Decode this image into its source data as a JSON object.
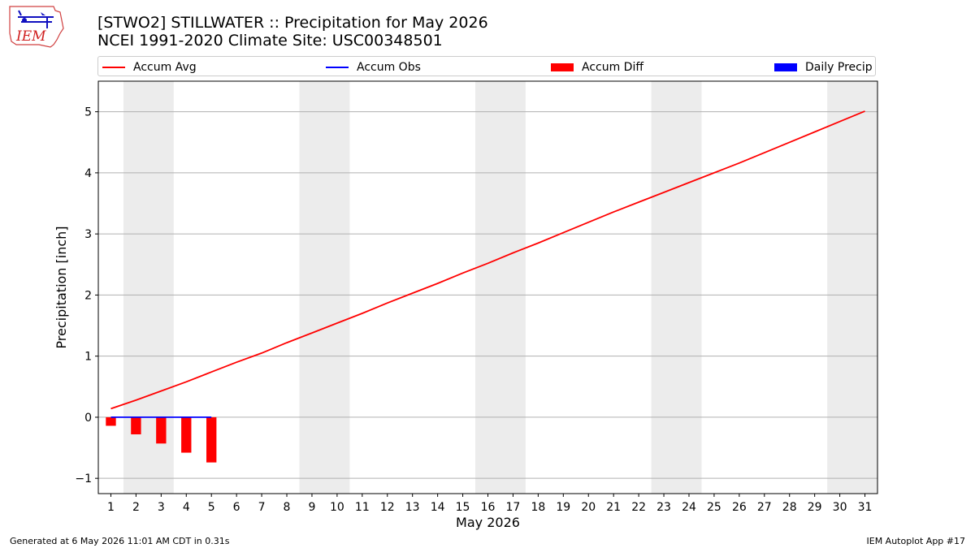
{
  "logo": {
    "text": "IEM",
    "icon": "iem-logo-icon"
  },
  "titles": {
    "line1": "[STWO2] STILLWATER :: Precipitation for May 2026",
    "line2": "NCEI 1991-2020 Climate Site: USC00348501"
  },
  "legend": [
    {
      "label": "Accum Avg",
      "kind": "line",
      "color": "#ff0000"
    },
    {
      "label": "Accum Obs",
      "kind": "line",
      "color": "#0000ff"
    },
    {
      "label": "Accum Diff",
      "kind": "bar",
      "color": "#ff0000"
    },
    {
      "label": "Daily Precip",
      "kind": "bar",
      "color": "#0000ff"
    }
  ],
  "footer": {
    "left": "Generated at 6 May 2026 11:01 AM CDT in 0.31s",
    "right": "IEM Autoplot App #17"
  },
  "chart_data": {
    "type": "line",
    "xlabel": "May 2026",
    "ylabel": "Precipitation [inch]",
    "xlim": [
      0.5,
      31.5
    ],
    "ylim": [
      -1.25,
      5.5
    ],
    "x_ticks": [
      1,
      2,
      3,
      4,
      5,
      6,
      7,
      8,
      9,
      10,
      11,
      12,
      13,
      14,
      15,
      16,
      17,
      18,
      19,
      20,
      21,
      22,
      23,
      24,
      25,
      26,
      27,
      28,
      29,
      30,
      31
    ],
    "y_ticks": [
      -1,
      0,
      1,
      2,
      3,
      4,
      5
    ],
    "grid": "horizontal",
    "weekend_shading": [
      [
        1.5,
        3.5
      ],
      [
        8.5,
        10.5
      ],
      [
        15.5,
        17.5
      ],
      [
        22.5,
        24.5
      ],
      [
        29.5,
        31.5
      ]
    ],
    "series": [
      {
        "name": "Accum Avg",
        "type": "line",
        "color": "#ff0000",
        "x": [
          1,
          2,
          3,
          4,
          5,
          6,
          7,
          8,
          9,
          10,
          11,
          12,
          13,
          14,
          15,
          16,
          17,
          18,
          19,
          20,
          21,
          22,
          23,
          24,
          25,
          26,
          27,
          28,
          29,
          30,
          31
        ],
        "values": [
          0.14,
          0.28,
          0.43,
          0.58,
          0.74,
          0.9,
          1.05,
          1.22,
          1.38,
          1.54,
          1.7,
          1.87,
          2.03,
          2.19,
          2.36,
          2.52,
          2.69,
          2.85,
          3.02,
          3.19,
          3.36,
          3.52,
          3.68,
          3.84,
          4.0,
          4.16,
          4.33,
          4.5,
          4.67,
          4.84,
          5.01
        ]
      },
      {
        "name": "Accum Obs",
        "type": "line",
        "color": "#0000ff",
        "x": [
          1,
          2,
          3,
          4,
          5
        ],
        "values": [
          0,
          0,
          0,
          0,
          0
        ]
      },
      {
        "name": "Accum Diff",
        "type": "bar",
        "color": "#ff0000",
        "x": [
          1,
          2,
          3,
          4,
          5
        ],
        "values": [
          -0.14,
          -0.28,
          -0.43,
          -0.58,
          -0.74
        ]
      },
      {
        "name": "Daily Precip",
        "type": "bar",
        "color": "#0000ff",
        "x": [
          1,
          2,
          3,
          4,
          5
        ],
        "values": [
          0,
          0,
          0,
          0,
          0
        ]
      }
    ]
  }
}
